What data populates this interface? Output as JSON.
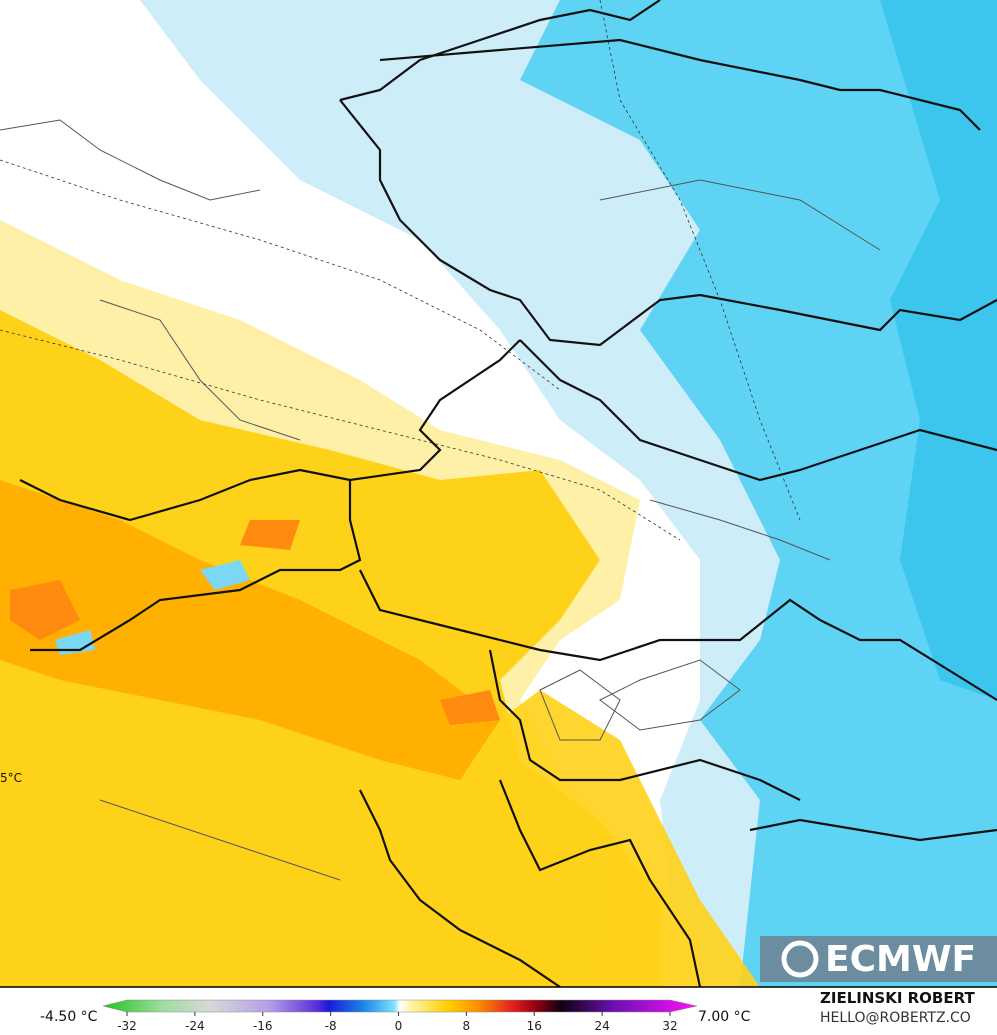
{
  "map": {
    "contour_label": "5°C",
    "logo": "ECMWF"
  },
  "colorbar": {
    "min_label": "-4.50 °C",
    "max_label": "7.00 °C",
    "ticks": [
      -32,
      -24,
      -16,
      -8,
      0,
      8,
      16,
      24,
      32
    ]
  },
  "credit": {
    "author": "ZIELINSKI ROBERT",
    "contact": "HELLO@ROBERTZ.CO"
  }
}
